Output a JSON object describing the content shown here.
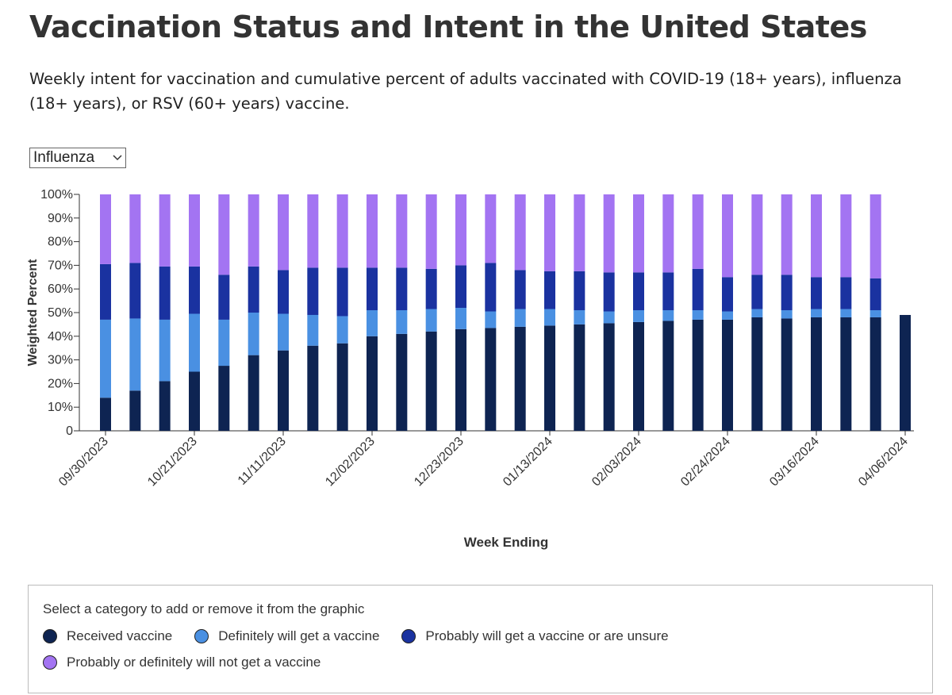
{
  "controls": {
    "vaccine_select": "Influenza"
  },
  "chart_data": {
    "type": "stacked_bar",
    "title": "Vaccination Status and Intent in the United States",
    "subtitle": "Weekly intent for vaccination and cumulative percent of adults vaccinated with COVID-19 (18+ years), influenza (18+ years), or RSV (60+ years) vaccine.",
    "x_label": "Week Ending",
    "y_label": "Weighted Percent",
    "legend_title": "Select a category to add or remove it from the graphic",
    "categories": [
      "09/30/2023",
      null,
      null,
      "10/21/2023",
      null,
      null,
      "11/11/2023",
      null,
      null,
      "12/02/2023",
      null,
      null,
      "12/23/2023",
      null,
      null,
      "01/13/2024",
      null,
      null,
      "02/03/2024",
      null,
      null,
      "02/24/2024",
      null,
      null,
      "03/16/2024",
      null,
      null,
      "04/06/2024"
    ],
    "series": [
      {
        "name": "Received vaccine",
        "color": "#0e2452",
        "values": [
          14,
          17,
          21,
          25,
          27.5,
          32,
          34,
          36,
          37,
          40,
          41,
          42,
          43,
          43.5,
          44,
          44.5,
          45,
          45.5,
          46,
          46.5,
          47,
          47,
          48,
          47.5,
          48,
          48,
          48,
          49
        ]
      },
      {
        "name": "Definitely will get a vaccine",
        "color": "#4a90e2",
        "values": [
          33,
          30.5,
          26,
          24.5,
          19.5,
          18,
          15.5,
          13,
          11.5,
          11,
          10,
          9.5,
          9,
          7,
          7.5,
          7,
          6,
          5,
          5,
          4.5,
          4,
          3.5,
          3.5,
          3.5,
          3.5,
          3.5,
          3,
          null
        ]
      },
      {
        "name": "Probably will get a vaccine or are unsure",
        "color": "#1a32a0",
        "values": [
          23.5,
          23.5,
          22.5,
          20,
          19,
          19.5,
          18.5,
          20,
          20.5,
          18,
          18,
          17,
          18,
          20.5,
          16.5,
          16,
          16.5,
          16.5,
          16,
          16,
          17.5,
          14.5,
          14.5,
          15,
          13.5,
          13.5,
          13.5,
          null
        ]
      },
      {
        "name": "Probably or definitely will not get a vaccine",
        "color": "#a374f2",
        "values": [
          29.5,
          29,
          30.5,
          30.5,
          34,
          30.5,
          32,
          31,
          31,
          31,
          31,
          31.5,
          30,
          29,
          32,
          32.5,
          32.5,
          33,
          33,
          33,
          31.5,
          35,
          34,
          34,
          35,
          35,
          35.5,
          null
        ]
      }
    ],
    "ylim": [
      0,
      100
    ],
    "yticks": [
      0,
      {
        "value": 10,
        "label": "10%"
      },
      {
        "value": 20,
        "label": "20%"
      },
      {
        "value": 30,
        "label": "30%"
      },
      {
        "value": 40,
        "label": "40%"
      },
      {
        "value": 50,
        "label": "50%"
      },
      {
        "value": 60,
        "label": "60%"
      },
      {
        "value": 70,
        "label": "70%"
      },
      {
        "value": 80,
        "label": "80%"
      },
      {
        "value": 90,
        "label": "90%"
      },
      {
        "value": 100,
        "label": "100%"
      }
    ]
  }
}
